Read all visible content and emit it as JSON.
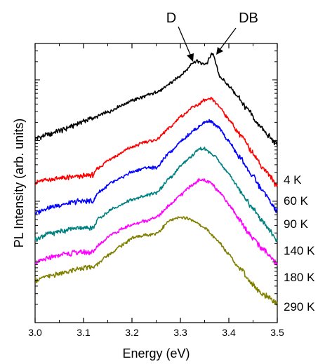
{
  "chart_data": {
    "type": "line",
    "xlabel": "Energy (eV)",
    "ylabel": "PL Intensity (arb. units)",
    "xlim": [
      3.0,
      3.5
    ],
    "x_ticks": [
      "3.0",
      "3.1",
      "3.2",
      "3.3",
      "3.4",
      "3.5"
    ],
    "y_scale": "log",
    "y_tick_labels": "none",
    "grid": false,
    "legend": "inline labels at right",
    "annotations": [
      {
        "text": "D",
        "x": 3.33
      },
      {
        "text": "DB",
        "x": 3.365
      }
    ],
    "series": [
      {
        "name": "4 K",
        "color": "#000000",
        "x": [
          3.0,
          3.02,
          3.05,
          3.08,
          3.1,
          3.12,
          3.15,
          3.18,
          3.2,
          3.22,
          3.24,
          3.26,
          3.28,
          3.3,
          3.31,
          3.325,
          3.335,
          3.345,
          3.355,
          3.36,
          3.365,
          3.37,
          3.375,
          3.38,
          3.4,
          3.42,
          3.44,
          3.46,
          3.48,
          3.5
        ],
        "values": [
          -1.2,
          -1.1,
          -0.95,
          -0.75,
          -0.6,
          -0.5,
          -0.3,
          -0.05,
          0.1,
          0.2,
          0.32,
          0.45,
          0.7,
          0.95,
          1.1,
          1.4,
          1.45,
          1.35,
          1.38,
          1.55,
          1.7,
          1.6,
          1.25,
          0.95,
          0.6,
          0.2,
          -0.25,
          -0.7,
          -1.1,
          -1.4
        ]
      },
      {
        "name": "60 K",
        "color": "#ff0000",
        "x": [
          3.0,
          3.03,
          3.06,
          3.09,
          3.12,
          3.13,
          3.16,
          3.2,
          3.23,
          3.25,
          3.28,
          3.3,
          3.33,
          3.35,
          3.365,
          3.38,
          3.4,
          3.42,
          3.45,
          3.47,
          3.5
        ],
        "values": [
          -2.7,
          -2.6,
          -2.55,
          -2.5,
          -2.45,
          -2.2,
          -1.85,
          -1.5,
          -1.3,
          -1.25,
          -0.8,
          -0.45,
          -0.1,
          0.1,
          0.15,
          -0.1,
          -0.55,
          -1.0,
          -1.7,
          -2.2,
          -2.8
        ]
      },
      {
        "name": "90 K",
        "color": "#0000ff",
        "x": [
          3.0,
          3.03,
          3.06,
          3.09,
          3.12,
          3.13,
          3.16,
          3.2,
          3.23,
          3.25,
          3.28,
          3.3,
          3.33,
          3.35,
          3.36,
          3.38,
          3.4,
          3.42,
          3.45,
          3.47,
          3.5
        ],
        "values": [
          -3.75,
          -3.55,
          -3.45,
          -3.35,
          -3.35,
          -3.05,
          -2.7,
          -2.35,
          -2.2,
          -2.2,
          -1.65,
          -1.3,
          -0.9,
          -0.65,
          -0.6,
          -0.85,
          -1.3,
          -1.8,
          -2.5,
          -3.0,
          -3.7
        ]
      },
      {
        "name": "140 K",
        "color": "#008080",
        "x": [
          3.0,
          3.03,
          3.06,
          3.09,
          3.12,
          3.13,
          3.16,
          3.2,
          3.23,
          3.25,
          3.28,
          3.3,
          3.32,
          3.34,
          3.35,
          3.37,
          3.4,
          3.42,
          3.45,
          3.47,
          3.5
        ],
        "values": [
          -4.65,
          -4.45,
          -4.35,
          -4.25,
          -4.25,
          -3.95,
          -3.6,
          -3.3,
          -3.15,
          -3.05,
          -2.55,
          -2.15,
          -1.85,
          -1.55,
          -1.55,
          -1.8,
          -2.4,
          -2.9,
          -3.6,
          -4.05,
          -4.7
        ]
      },
      {
        "name": "180 K",
        "color": "#ff00ff",
        "x": [
          3.0,
          3.03,
          3.06,
          3.09,
          3.12,
          3.13,
          3.16,
          3.2,
          3.23,
          3.25,
          3.28,
          3.3,
          3.32,
          3.34,
          3.36,
          3.38,
          3.4,
          3.42,
          3.45,
          3.47,
          3.5
        ],
        "values": [
          -5.45,
          -5.3,
          -5.15,
          -5.1,
          -5.1,
          -4.85,
          -4.45,
          -4.15,
          -4.0,
          -3.9,
          -3.45,
          -3.15,
          -2.85,
          -2.6,
          -2.7,
          -3.0,
          -3.45,
          -3.95,
          -4.6,
          -5.0,
          -5.5
        ]
      },
      {
        "name": "290 K",
        "color": "#808000",
        "x": [
          3.0,
          3.03,
          3.06,
          3.09,
          3.12,
          3.15,
          3.18,
          3.2,
          3.23,
          3.25,
          3.28,
          3.3,
          3.32,
          3.35,
          3.38,
          3.4,
          3.42,
          3.45,
          3.47,
          3.5
        ],
        "values": [
          -6.05,
          -5.9,
          -5.8,
          -5.65,
          -5.6,
          -5.2,
          -4.85,
          -4.6,
          -4.5,
          -4.45,
          -4.0,
          -3.9,
          -3.95,
          -4.25,
          -4.75,
          -5.15,
          -5.6,
          -6.2,
          -6.55,
          -6.85
        ]
      }
    ],
    "y_range_internal": [
      -7.5,
      2.05
    ]
  }
}
